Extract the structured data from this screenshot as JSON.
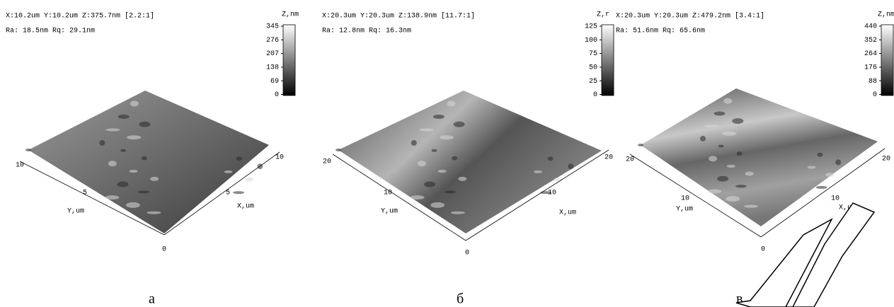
{
  "panels": [
    {
      "header": "X:10.2um  Y:10.2um  Z:375.7nm [2.2:1]",
      "roughness": "Ra: 18.5nm  Rq: 29.1nm",
      "z_label": "Z,nm",
      "colorbar_ticks": [
        "345",
        "276",
        "207",
        "138",
        "69",
        "0"
      ],
      "y_axis": {
        "label": "Y,um",
        "ticks": [
          "10",
          "5",
          "0"
        ]
      },
      "x_axis": {
        "label": "X,um",
        "ticks": [
          "5",
          "10"
        ]
      },
      "caption": "а"
    },
    {
      "header": "X:20.3um  Y:20.3um  Z:138.9nm [11.7:1]",
      "roughness": "Ra: 12.8nm  Rq: 16.3nm",
      "z_label": "Z,r",
      "colorbar_ticks": [
        "125",
        "100",
        "75",
        "50",
        "25",
        "0"
      ],
      "y_axis": {
        "label": "Y,um",
        "ticks": [
          "20",
          "10",
          "0"
        ]
      },
      "x_axis": {
        "label": "X,um",
        "ticks": [
          "10",
          "20"
        ]
      },
      "caption": "б"
    },
    {
      "header": "X:20.3um  Y:20.3um  Z:479.2nm [3.4:1]",
      "roughness": "Ra: 51.6nm  Rq: 65.6nm",
      "z_label": "Z,nm",
      "colorbar_ticks": [
        "440",
        "352",
        "264",
        "176",
        "88",
        "0"
      ],
      "y_axis": {
        "label": "Y,um",
        "ticks": [
          "20",
          "10",
          "0"
        ]
      },
      "x_axis": {
        "label": "X,um",
        "ticks": [
          "10",
          "20"
        ]
      },
      "caption": "в"
    }
  ]
}
